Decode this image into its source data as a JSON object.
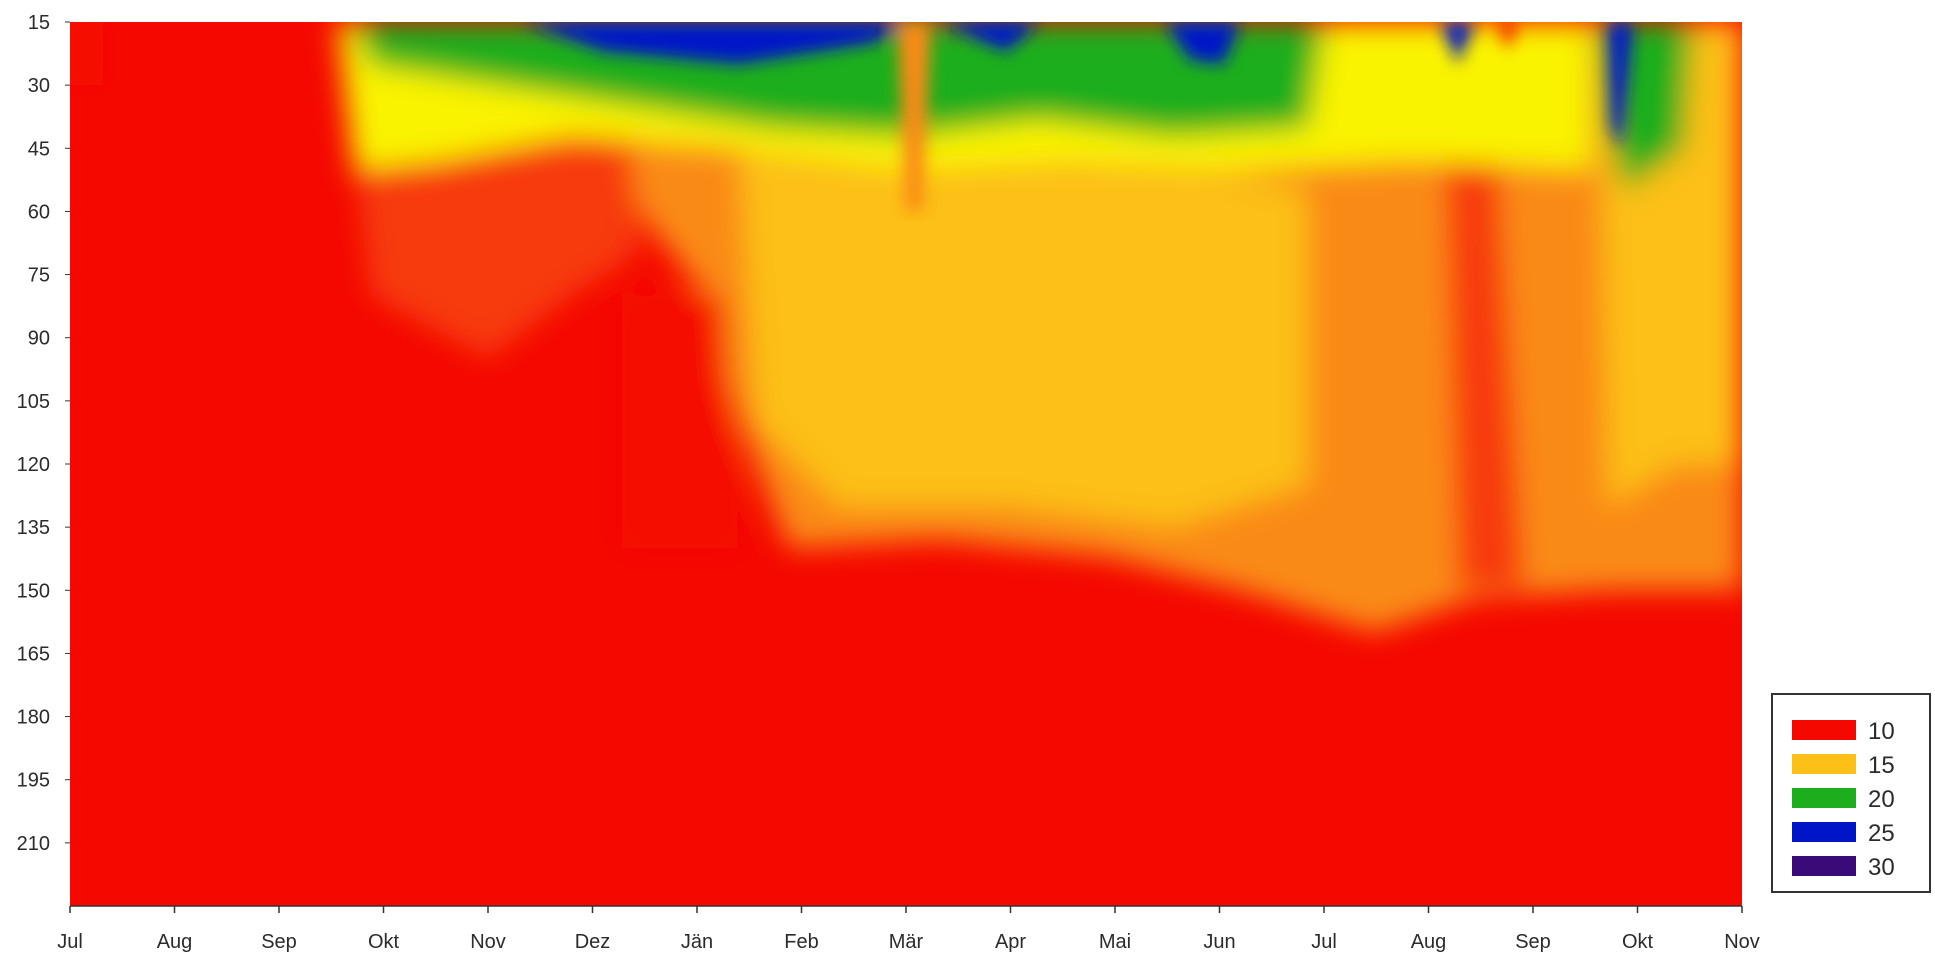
{
  "colors": {
    "red": "#f50800",
    "red_orange": "#f73a0c",
    "orange": "#fa8a12",
    "yellow_orange": "#fcc016",
    "yellow": "#f9f300",
    "green": "#1cae1c",
    "blue": "#0014c8",
    "purple": "#3a0a78",
    "axis": "#333333",
    "legend_border": "#333333"
  },
  "chart_data": {
    "type": "heatmap",
    "title": "",
    "xlabel": "",
    "ylabel": "",
    "x_ticks": [
      "Jul",
      "Aug",
      "Sep",
      "Okt",
      "Nov",
      "Dez",
      "Jän",
      "Feb",
      "Mär",
      "Apr",
      "Mai",
      "Jun",
      "Jul",
      "Aug",
      "Sep",
      "Okt",
      "Nov"
    ],
    "y_ticks": [
      15,
      30,
      45,
      60,
      75,
      90,
      105,
      120,
      135,
      150,
      165,
      180,
      195,
      210
    ],
    "y_range": [
      15,
      225
    ],
    "y_inverted": true,
    "legend": {
      "placement": "bottom-right",
      "entries": [
        {
          "label": "10",
          "color": "#f50800"
        },
        {
          "label": "15",
          "color": "#fcc016"
        },
        {
          "label": "20",
          "color": "#1cae1c"
        },
        {
          "label": "25",
          "color": "#0014c8"
        },
        {
          "label": "30",
          "color": "#3a0a78"
        }
      ]
    },
    "approx_fields": [
      {
        "x": 0,
        "depth_top": 15,
        "depth_warm_layer": 40,
        "surface_value": 11
      },
      {
        "x": 2,
        "depth_top": 15,
        "depth_warm_layer": 40,
        "surface_value": 12
      },
      {
        "x": 3,
        "depth_top": 15,
        "depth_warm_layer": 55,
        "surface_value": 18
      },
      {
        "x": 5,
        "depth_top": 15,
        "depth_warm_layer": 45,
        "surface_value": 19
      },
      {
        "x": 6,
        "depth_top": 15,
        "depth_warm_layer": 45,
        "surface_value": 23
      },
      {
        "x": 7,
        "depth_top": 15,
        "depth_warm_layer": 50,
        "surface_value": 22
      },
      {
        "x": 8,
        "depth_top": 15,
        "depth_warm_layer": 55,
        "surface_value": 13
      },
      {
        "x": 9,
        "depth_top": 15,
        "depth_warm_layer": 45,
        "surface_value": 21
      },
      {
        "x": 11,
        "depth_top": 15,
        "depth_warm_layer": 40,
        "surface_value": 19
      },
      {
        "x": 12,
        "depth_top": 15,
        "depth_warm_layer": 30,
        "surface_value": 15
      },
      {
        "x": 13,
        "depth_top": 15,
        "depth_warm_layer": 25,
        "surface_value": 12
      },
      {
        "x": 14,
        "depth_top": 15,
        "depth_warm_layer": 60,
        "surface_value": 25
      },
      {
        "x": 15,
        "depth_top": 15,
        "depth_warm_layer": 45,
        "surface_value": 17
      },
      {
        "x": 16,
        "depth_top": 15,
        "depth_warm_layer": 40,
        "surface_value": 14
      }
    ]
  }
}
